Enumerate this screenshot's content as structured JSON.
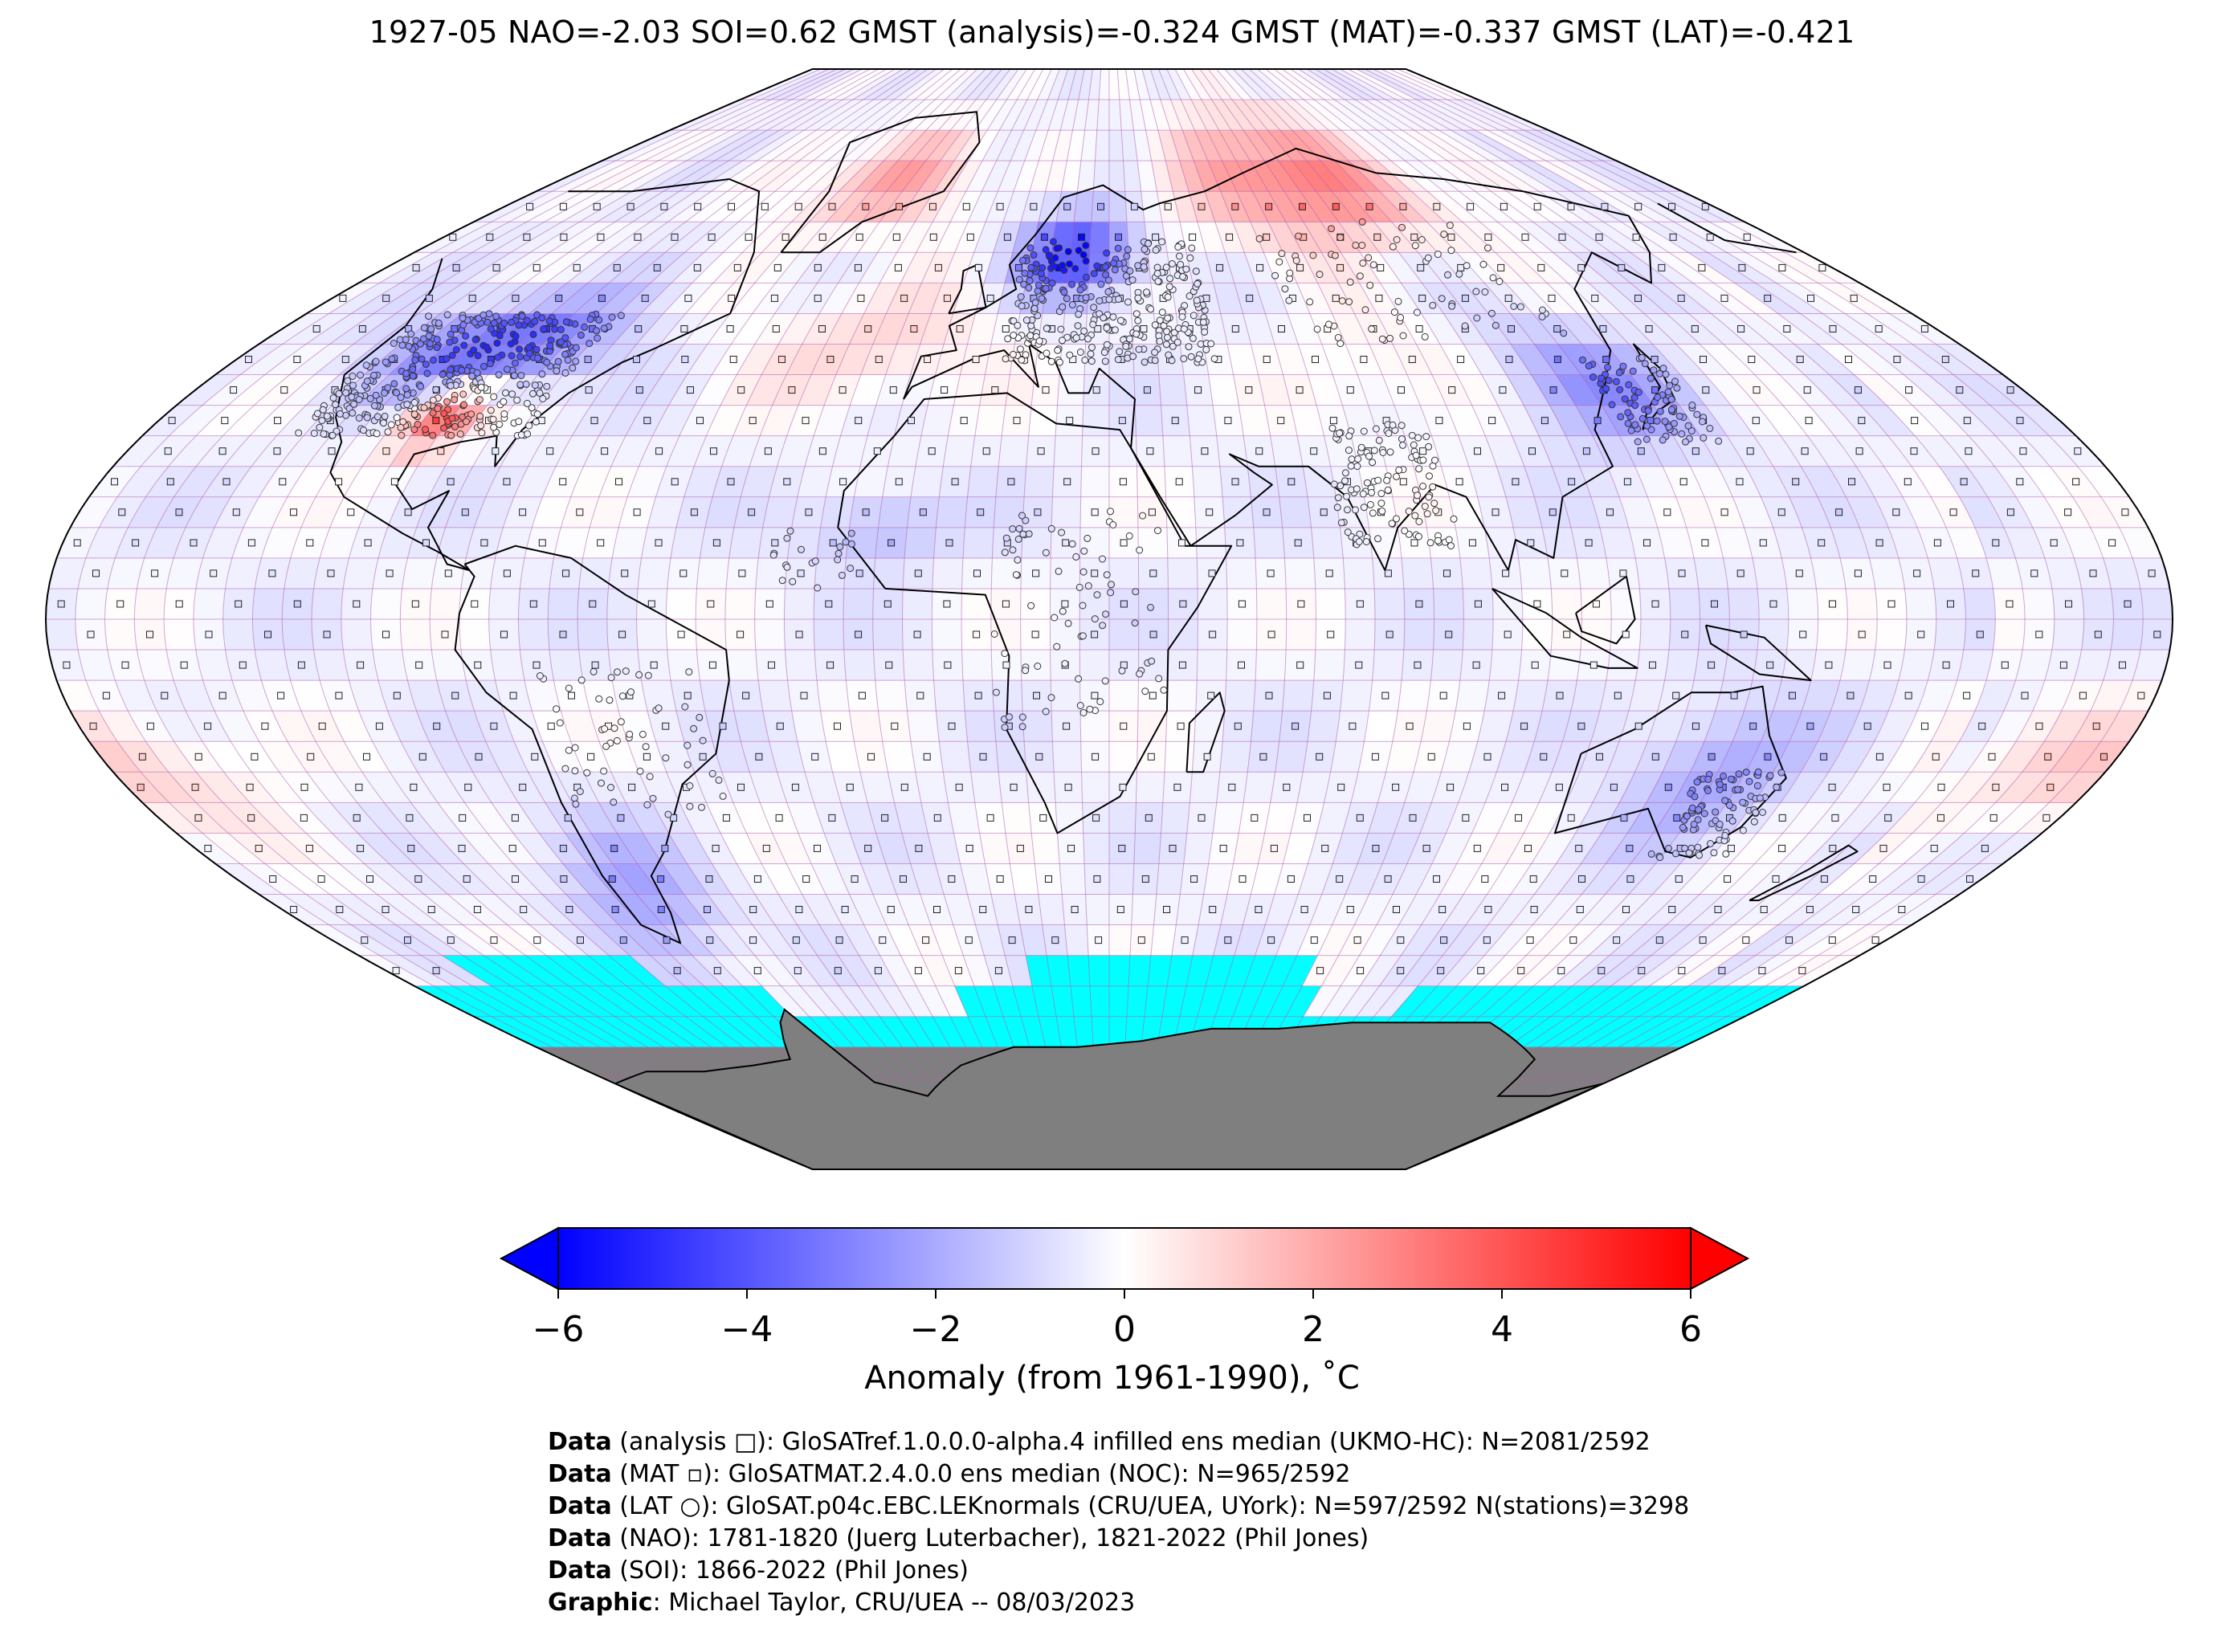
{
  "title": "1927-05 NAO=-2.03 SOI=0.62 GMST (analysis)=-0.324 GMST (MAT)=-0.337 GMST (LAT)=-0.421",
  "colors": {
    "missing_grid": "#00ffff",
    "land_mask": "#7f7f7f",
    "grid_lines": "#b05fb0",
    "cold": "#0000ff",
    "neutral": "#ffffff",
    "warm": "#ff0000"
  },
  "colorbar": {
    "ticks": [
      "−6",
      "−4",
      "−2",
      "0",
      "2",
      "4",
      "6"
    ],
    "vmin": -6,
    "vmax": 6,
    "label": "Anomaly (from 1961-1990), ˚C"
  },
  "credits": [
    {
      "bold": "Data",
      "text": " (analysis □): GloSATref.1.0.0.0-alpha.4 infilled ens median (UKMO-HC): N=2081/2592"
    },
    {
      "bold": "Data",
      "text": " (MAT ▫): GloSATMAT.2.4.0.0 ens median (NOC): N=965/2592"
    },
    {
      "bold": "Data",
      "text": " (LAT ○): GloSAT.p04c.EBC.LEKnormals (CRU/UEA, UYork): N=597/2592 N(stations)=3298"
    },
    {
      "bold": "Data",
      "text": " (NAO): 1781-1820 (Juerg Luterbacher), 1821-2022 (Phil Jones)"
    },
    {
      "bold": "Data",
      "text": " (SOI): 1866-2022 (Phil Jones)"
    },
    {
      "bold": "Graphic",
      "text": ": Michael Taylor, CRU/UEA -- 08/03/2023"
    }
  ]
}
